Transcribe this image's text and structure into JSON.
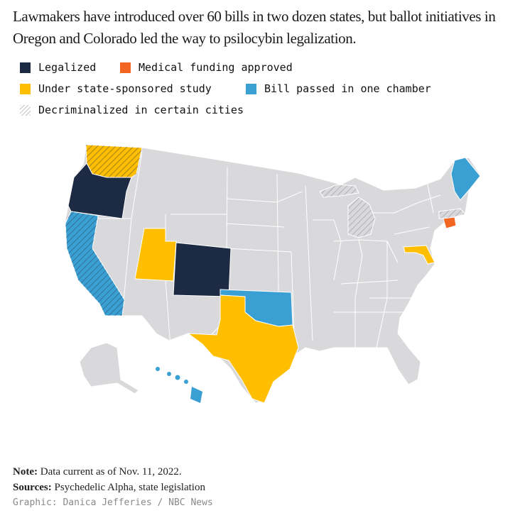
{
  "headline": "Lawmakers have introduced over 60 bills in two dozen states, but ballot initiatives in Oregon and Colorado led the way to psilocybin legalization.",
  "legend": [
    {
      "label": "Legalized",
      "color": "#1d2a44",
      "pattern": "solid"
    },
    {
      "label": "Medical funding approved",
      "color": "#f26522",
      "pattern": "solid"
    },
    {
      "label": "Under state-sponsored study",
      "color": "#ffbe00",
      "pattern": "solid"
    },
    {
      "label": "Bill passed in one chamber",
      "color": "#3a9fd2",
      "pattern": "solid"
    },
    {
      "label": "Decriminalized in certain cities",
      "color": "#bdbdbd",
      "pattern": "hatch"
    }
  ],
  "map": {
    "base_color": "#d9d9dc",
    "states": {
      "legalized": [
        "Oregon",
        "Colorado"
      ],
      "medical_funding_approved": [
        "Connecticut"
      ],
      "under_state_sponsored_study": [
        "Washington",
        "Utah",
        "Texas",
        "Maryland"
      ],
      "bill_passed_in_one_chamber": [
        "California",
        "Oklahoma",
        "Maine",
        "Hawaii"
      ],
      "decriminalized_in_certain_cities": [
        "Washington",
        "California",
        "Michigan",
        "Massachusetts"
      ]
    }
  },
  "notes": {
    "note_label": "Note:",
    "note_text": "Data current as of Nov. 11, 2022.",
    "sources_label": "Sources:",
    "sources_text": "Psychedelic Alpha, state legislation",
    "credit": "Graphic: Danica Jefferies / NBC News"
  }
}
